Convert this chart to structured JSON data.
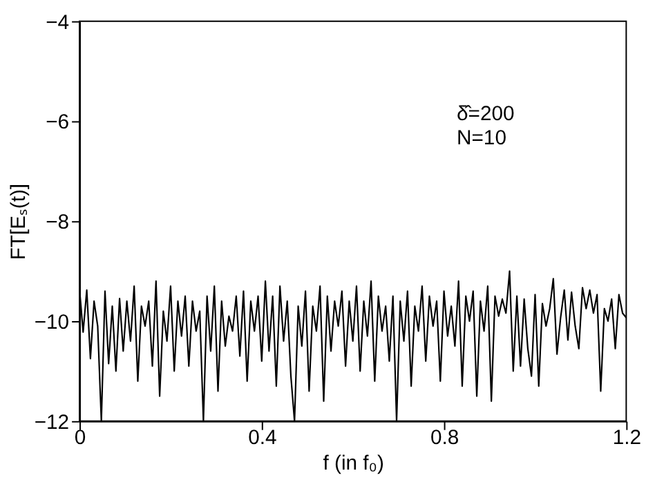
{
  "chart_data": {
    "type": "line",
    "xlabel": "f (in f₀)",
    "ylabel": "FT[Eₛ(t)]",
    "annotations": [
      "δ̂=200",
      "N=10"
    ],
    "xlim": [
      0,
      1.2
    ],
    "xticks": [
      0,
      0.4,
      0.8,
      1.2
    ],
    "ylim": [
      -12,
      -4
    ],
    "yticks": [
      -4,
      -6,
      -8,
      -10,
      -12
    ],
    "grid": false,
    "marker": "none",
    "line_style": "solid",
    "x": [
      0,
      0.008,
      0.016,
      0.024,
      0.032,
      0.04,
      0.048,
      0.056,
      0.064,
      0.072,
      0.08,
      0.088,
      0.096,
      0.104,
      0.112,
      0.12,
      0.128,
      0.136,
      0.144,
      0.152,
      0.16,
      0.168,
      0.176,
      0.184,
      0.192,
      0.2,
      0.208,
      0.216,
      0.224,
      0.232,
      0.24,
      0.248,
      0.256,
      0.264,
      0.272,
      0.28,
      0.288,
      0.296,
      0.304,
      0.312,
      0.32,
      0.328,
      0.336,
      0.344,
      0.352,
      0.36,
      0.368,
      0.376,
      0.384,
      0.392,
      0.4,
      0.408,
      0.416,
      0.424,
      0.432,
      0.44,
      0.448,
      0.456,
      0.464,
      0.472,
      0.48,
      0.488,
      0.496,
      0.504,
      0.512,
      0.52,
      0.528,
      0.536,
      0.544,
      0.552,
      0.56,
      0.568,
      0.576,
      0.584,
      0.592,
      0.6,
      0.608,
      0.616,
      0.624,
      0.632,
      0.64,
      0.648,
      0.656,
      0.664,
      0.672,
      0.68,
      0.688,
      0.696,
      0.704,
      0.712,
      0.72,
      0.728,
      0.736,
      0.744,
      0.752,
      0.76,
      0.768,
      0.776,
      0.784,
      0.792,
      0.8,
      0.808,
      0.816,
      0.824,
      0.832,
      0.84,
      0.848,
      0.856,
      0.864,
      0.872,
      0.88,
      0.888,
      0.896,
      0.904,
      0.912,
      0.92,
      0.928,
      0.936,
      0.944,
      0.952,
      0.96,
      0.968,
      0.976,
      0.984,
      0.992,
      1.0,
      1.008,
      1.016,
      1.024,
      1.032,
      1.04,
      1.048,
      1.056,
      1.064,
      1.072,
      1.08,
      1.088,
      1.096,
      1.104,
      1.112,
      1.12,
      1.128,
      1.136,
      1.144,
      1.152,
      1.16,
      1.168,
      1.176,
      1.184,
      1.192,
      1.2
    ],
    "series": [
      {
        "color": "#000000",
        "values": [
          -9.35,
          -10.22,
          -9.38,
          -10.75,
          -9.6,
          -10.1,
          -12,
          -9.4,
          -10.85,
          -9.7,
          -11.0,
          -9.55,
          -10.6,
          -9.6,
          -10.4,
          -9.3,
          -11.2,
          -9.7,
          -10.1,
          -9.6,
          -10.9,
          -9.2,
          -11.5,
          -9.8,
          -10.4,
          -9.3,
          -11.0,
          -9.6,
          -10.3,
          -9.5,
          -10.9,
          -9.6,
          -10.2,
          -9.8,
          -12,
          -9.5,
          -10.6,
          -9.3,
          -11.4,
          -9.6,
          -10.5,
          -9.9,
          -10.2,
          -9.5,
          -10.7,
          -9.4,
          -11.2,
          -9.6,
          -10.2,
          -9.5,
          -10.8,
          -9.2,
          -10.6,
          -9.5,
          -11.3,
          -9.3,
          -10.4,
          -9.6,
          -11.1,
          -12,
          -9.7,
          -10.5,
          -9.4,
          -11.4,
          -9.7,
          -10.2,
          -9.3,
          -11.6,
          -9.5,
          -10.6,
          -9.6,
          -10.1,
          -9.4,
          -10.9,
          -9.6,
          -10.4,
          -9.3,
          -11.0,
          -9.6,
          -10.3,
          -9.2,
          -11.2,
          -9.5,
          -10.2,
          -9.7,
          -10.8,
          -9.5,
          -12,
          -9.6,
          -10.4,
          -9.4,
          -11.3,
          -9.7,
          -10.2,
          -9.3,
          -10.8,
          -9.5,
          -10.1,
          -9.6,
          -11.2,
          -9.4,
          -10.3,
          -9.7,
          -10.5,
          -9.2,
          -11.3,
          -9.5,
          -10.0,
          -9.4,
          -11.5,
          -9.6,
          -10.2,
          -9.3,
          -11.6,
          -9.5,
          -9.9,
          -9.56,
          -9.84,
          -9.0,
          -11.0,
          -9.5,
          -10.9,
          -9.56,
          -10.55,
          -11.1,
          -9.47,
          -11.3,
          -9.65,
          -10.1,
          -9.75,
          -9.15,
          -10.66,
          -9.93,
          -9.38,
          -10.38,
          -9.42,
          -10.1,
          -10.55,
          -9.33,
          -9.75,
          -9.38,
          -9.84,
          -9.47,
          -11.4,
          -9.75,
          -10.0,
          -9.56,
          -10.55,
          -9.47,
          -9.84,
          -9.93
        ]
      }
    ]
  }
}
